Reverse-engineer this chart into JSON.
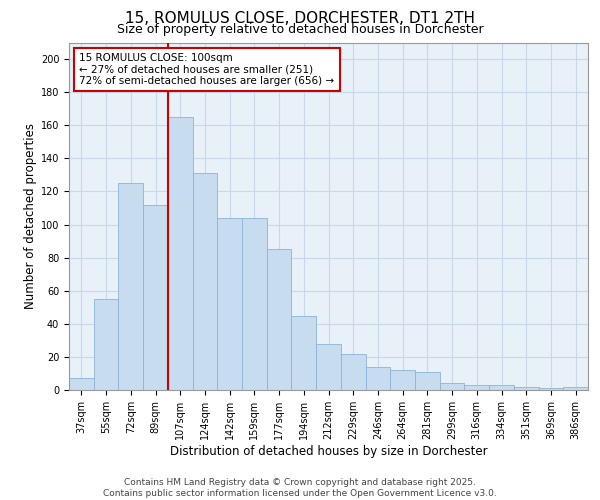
{
  "title": "15, ROMULUS CLOSE, DORCHESTER, DT1 2TH",
  "subtitle": "Size of property relative to detached houses in Dorchester",
  "xlabel": "Distribution of detached houses by size in Dorchester",
  "ylabel": "Number of detached properties",
  "categories": [
    "37sqm",
    "55sqm",
    "72sqm",
    "89sqm",
    "107sqm",
    "124sqm",
    "142sqm",
    "159sqm",
    "177sqm",
    "194sqm",
    "212sqm",
    "229sqm",
    "246sqm",
    "264sqm",
    "281sqm",
    "299sqm",
    "316sqm",
    "334sqm",
    "351sqm",
    "369sqm",
    "386sqm"
  ],
  "values": [
    7,
    55,
    125,
    112,
    165,
    131,
    104,
    104,
    85,
    45,
    28,
    22,
    14,
    12,
    11,
    4,
    3,
    3,
    2,
    1,
    2
  ],
  "bar_color": "#c8dcf0",
  "bar_edge_color": "#8ab4d8",
  "vline_color": "#cc0000",
  "vline_x_index": 3.5,
  "annotation_text": "15 ROMULUS CLOSE: 100sqm\n← 27% of detached houses are smaller (251)\n72% of semi-detached houses are larger (656) →",
  "annotation_box_color": "#ffffff",
  "annotation_box_edge": "#cc0000",
  "footer": "Contains HM Land Registry data © Crown copyright and database right 2025.\nContains public sector information licensed under the Open Government Licence v3.0.",
  "ylim": [
    0,
    210
  ],
  "yticks": [
    0,
    20,
    40,
    60,
    80,
    100,
    120,
    140,
    160,
    180,
    200
  ],
  "grid_color": "#c8d8e8",
  "background_color": "#e8f0f8",
  "title_fontsize": 11,
  "subtitle_fontsize": 9,
  "axis_label_fontsize": 8.5,
  "tick_fontsize": 7,
  "footer_fontsize": 6.5,
  "ann_fontsize": 7.5
}
